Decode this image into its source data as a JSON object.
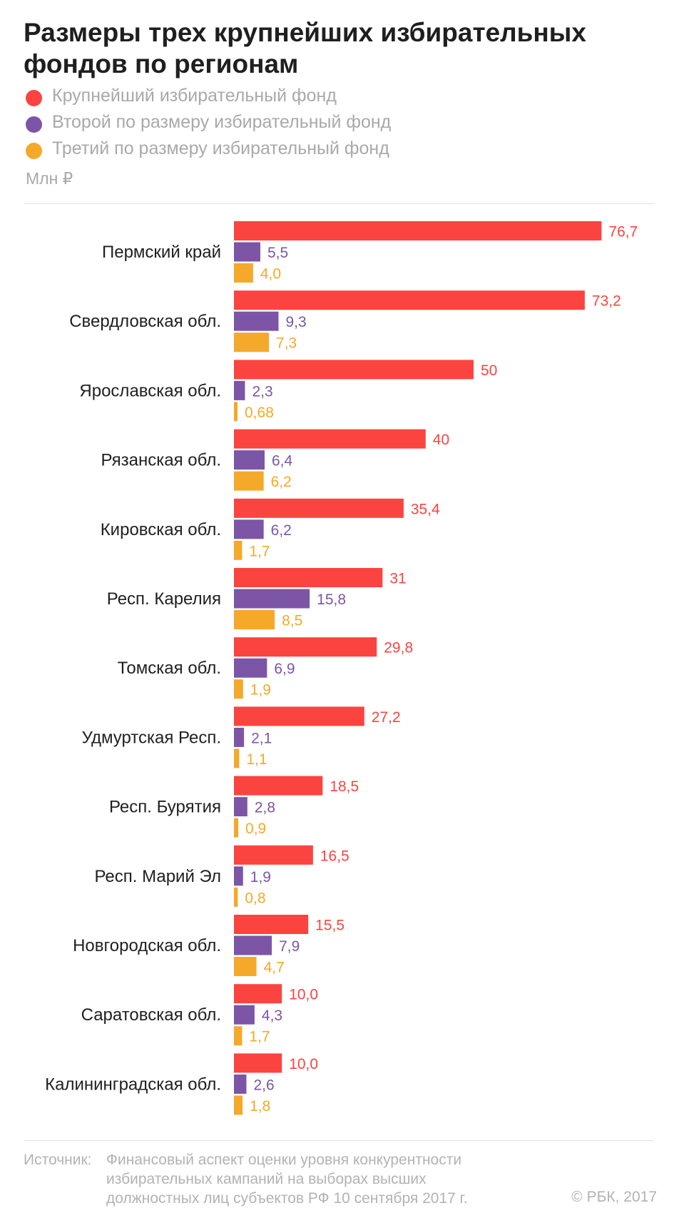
{
  "title": "Размеры трех крупнейших избирательных фондов по регионам",
  "legend": [
    {
      "label": "Крупнейший избирательный фонд",
      "color": "#fb4440"
    },
    {
      "label": "Второй по размеру избирательный фонд",
      "color": "#7c55a6"
    },
    {
      "label": "Третий по размеру избирательный фонд",
      "color": "#f4a92a"
    }
  ],
  "unit": "Млн ₽",
  "source": {
    "label": "Источник:",
    "text": "Финансовый аспект оценки уровня конкурентности избирательных кампаний на выборах высших должностных лиц субъектов РФ 10 сентября 2017 г."
  },
  "copyright": "© РБК, 2017",
  "chart_data": {
    "type": "bar",
    "orientation": "horizontal",
    "categories": [
      "Пермский край",
      "Свердловская обл.",
      "Ярославская обл.",
      "Рязанская обл.",
      "Кировская обл.",
      "Респ. Карелия",
      "Томская обл.",
      "Удмуртская Респ.",
      "Респ. Бурятия",
      "Респ. Марий Эл",
      "Новгородская обл.",
      "Саратовская обл.",
      "Калининградская обл."
    ],
    "series": [
      {
        "name": "Крупнейший избирательный фонд",
        "color": "#fb4440",
        "values": [
          76.7,
          73.2,
          50,
          40,
          35.4,
          31,
          29.8,
          27.2,
          18.5,
          16.5,
          15.5,
          10.0,
          10.0
        ],
        "labels": [
          "76,7",
          "73,2",
          "50",
          "40",
          "35,4",
          "31",
          "29,8",
          "27,2",
          "18,5",
          "16,5",
          "15,5",
          "10,0",
          "10,0"
        ]
      },
      {
        "name": "Второй по размеру избирательный фонд",
        "color": "#7c55a6",
        "values": [
          5.5,
          9.3,
          2.3,
          6.4,
          6.2,
          15.8,
          6.9,
          2.1,
          2.8,
          1.9,
          7.9,
          4.3,
          2.6
        ],
        "labels": [
          "5,5",
          "9,3",
          "2,3",
          "6,4",
          "6,2",
          "15,8",
          "6,9",
          "2,1",
          "2,8",
          "1,9",
          "7,9",
          "4,3",
          "2,6"
        ]
      },
      {
        "name": "Третий по размеру избирательный фонд",
        "color": "#f4a92a",
        "values": [
          4.0,
          7.3,
          0.68,
          6.2,
          1.7,
          8.5,
          1.9,
          1.1,
          0.9,
          0.8,
          4.7,
          1.7,
          1.8
        ],
        "labels": [
          "4,0",
          "7,3",
          "0,68",
          "6,2",
          "1,7",
          "8,5",
          "1,9",
          "1,1",
          "0,9",
          "0,8",
          "4,7",
          "1,7",
          "1,8"
        ]
      }
    ],
    "xlim": [
      0,
      80
    ],
    "grid": false,
    "legend_position": "top-left"
  }
}
